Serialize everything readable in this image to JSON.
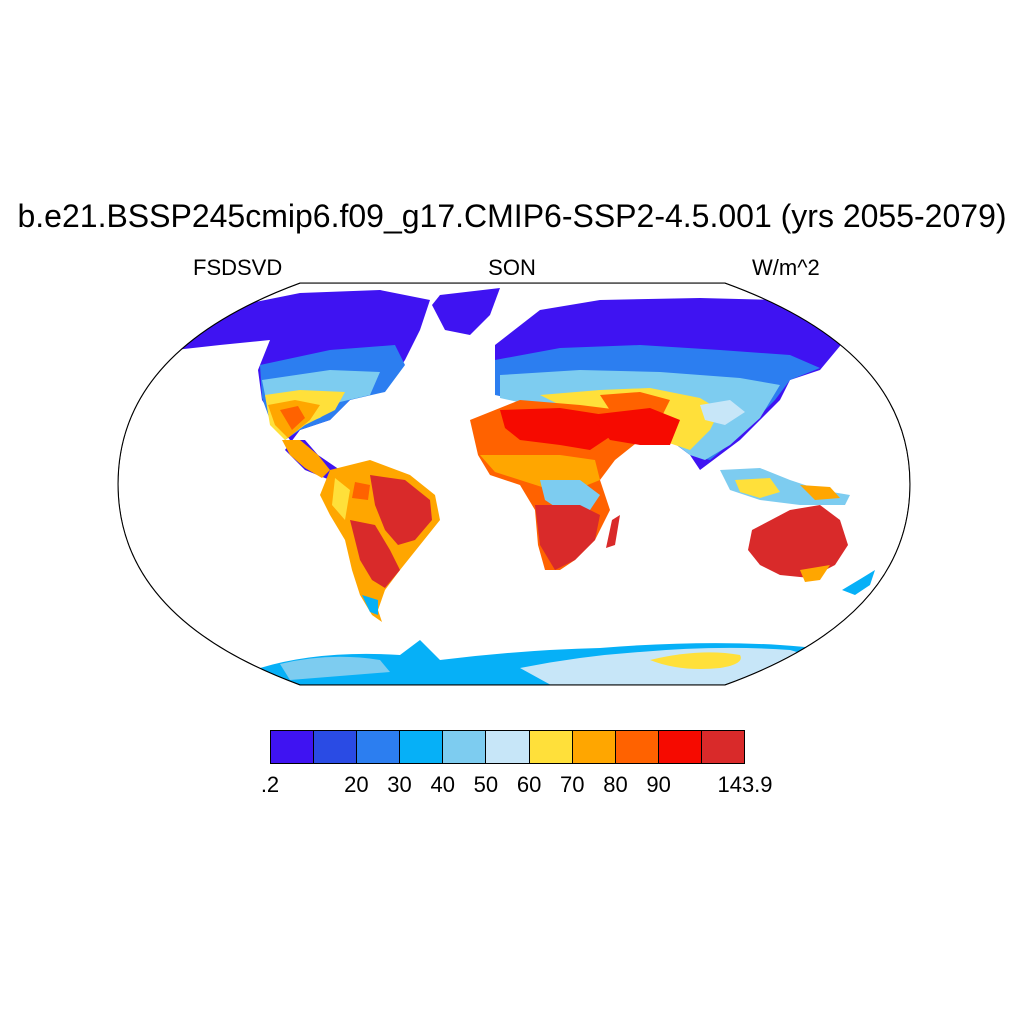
{
  "title": "b.e21.BSSP245cmip6.f09_g17.CMIP6-SSP2-4.5.001 (yrs 2055-2079)",
  "left_subtitle": "FSDSVD",
  "center_subtitle": "SON",
  "right_subtitle": "W/m^2",
  "map": {
    "projection": "Robinson",
    "variable": "FSDSVD",
    "season": "SON",
    "units": "W/m^2"
  },
  "colorbar": {
    "colors": [
      "#3f13f2",
      "#2a4be4",
      "#2c7ef0",
      "#06b0f7",
      "#7dccf0",
      "#c7e6f8",
      "#ffe03a",
      "#ffa600",
      "#ff6200",
      "#f60a00",
      "#d92a2a"
    ],
    "labels": [
      {
        "text": ".2",
        "boundary": 0
      },
      {
        "text": "20",
        "boundary": 2
      },
      {
        "text": "30",
        "boundary": 3
      },
      {
        "text": "40",
        "boundary": 4
      },
      {
        "text": "50",
        "boundary": 5
      },
      {
        "text": "60",
        "boundary": 6
      },
      {
        "text": "70",
        "boundary": 7
      },
      {
        "text": "80",
        "boundary": 8
      },
      {
        "text": "90",
        "boundary": 9
      },
      {
        "text": "143.9",
        "boundary": 11
      }
    ]
  }
}
